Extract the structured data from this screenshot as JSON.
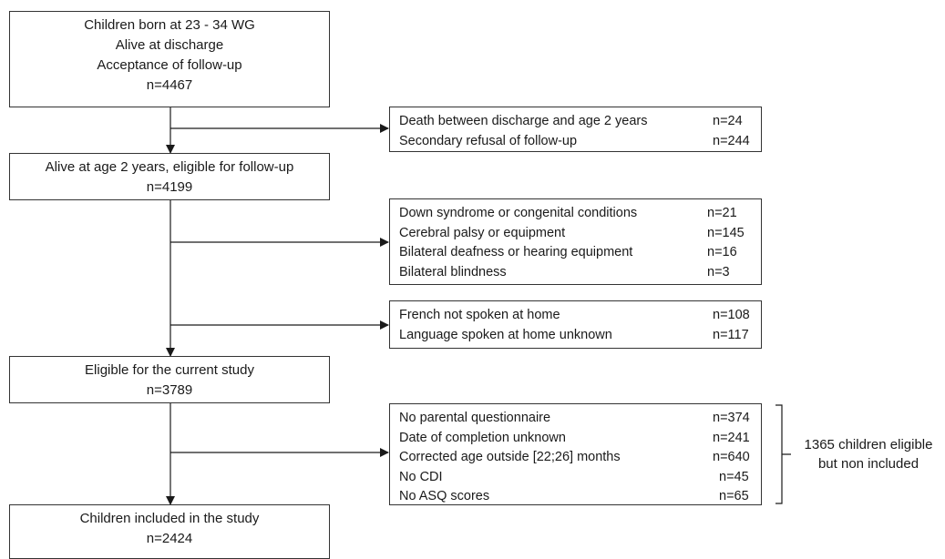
{
  "top_box": {
    "lines": [
      "Children born at 23 - 34 WG",
      "Alive at discharge",
      "Acceptance of follow-up",
      "n=4467"
    ]
  },
  "box2": {
    "lines": [
      "Alive at age 2 years, eligible for follow-up",
      "n=4199"
    ]
  },
  "box3": {
    "lines": [
      "Eligible for the current study",
      "n=3789"
    ]
  },
  "box4": {
    "lines": [
      "Children included in the study",
      "n=2424"
    ]
  },
  "exclusion1": {
    "rows": [
      {
        "reason": "Death between discharge and age 2 years",
        "count": "n=24"
      },
      {
        "reason": "Secondary refusal of follow-up",
        "count": "n=244"
      }
    ]
  },
  "exclusion2": {
    "rows": [
      {
        "reason": "Down syndrome or congenital conditions",
        "count": "n=21"
      },
      {
        "reason": "Cerebral palsy or equipment",
        "count": "n=145"
      },
      {
        "reason": "Bilateral deafness or hearing equipment",
        "count": "n=16"
      },
      {
        "reason": "Bilateral blindness",
        "count": "n=3"
      }
    ]
  },
  "exclusion3": {
    "rows": [
      {
        "reason": "French not spoken at home",
        "count": "n=108"
      },
      {
        "reason": "Language spoken at home unknown",
        "count": "n=117"
      }
    ]
  },
  "exclusion4": {
    "rows": [
      {
        "reason": "No parental questionnaire",
        "count": "n=374"
      },
      {
        "reason": "Date of completion unknown",
        "count": "n=241"
      },
      {
        "reason": "Corrected age outside [22;26] months",
        "count": "n=640"
      },
      {
        "reason": "No CDI",
        "count": "n=45"
      },
      {
        "reason": "No ASQ scores",
        "count": "n=65"
      }
    ]
  },
  "bracket_note": {
    "line1": "1365 children eligible",
    "line2": "but non included"
  }
}
